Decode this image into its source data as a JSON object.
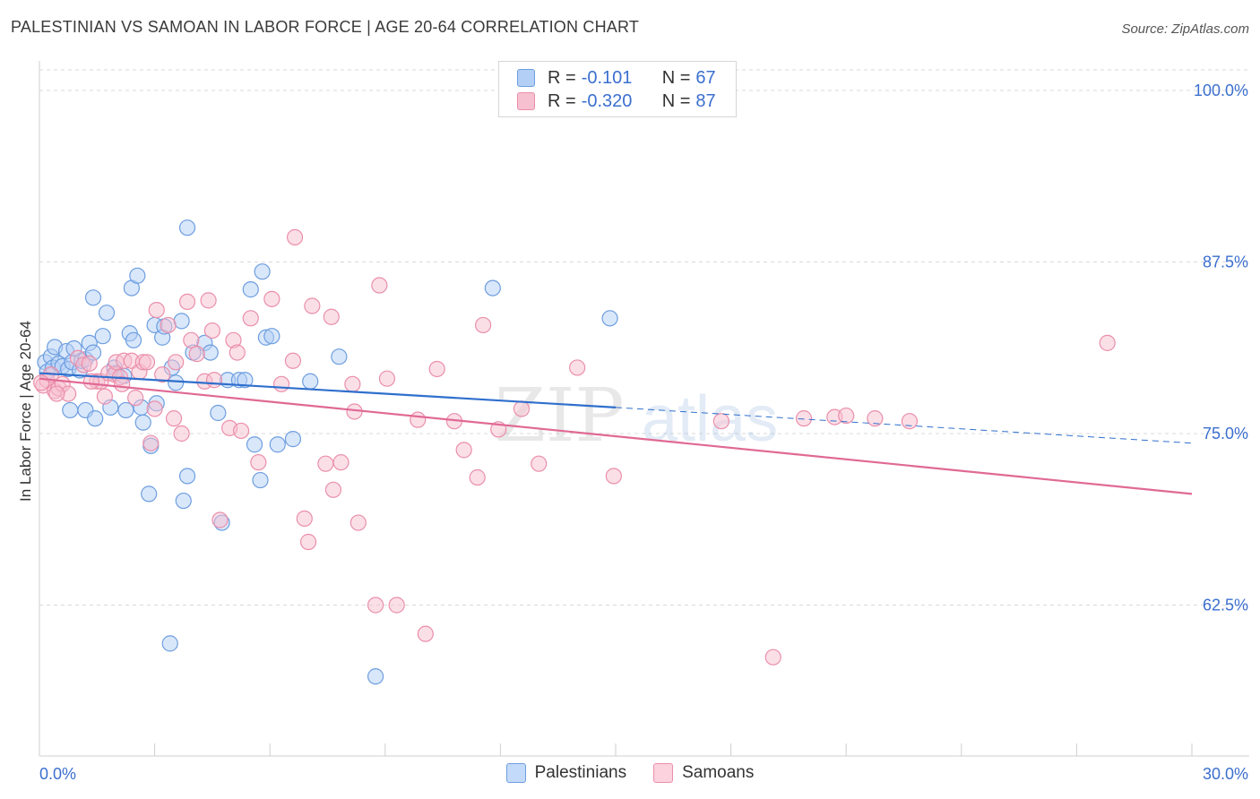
{
  "header": {
    "title": "PALESTINIAN VS SAMOAN IN LABOR FORCE | AGE 20-64 CORRELATION CHART",
    "source": "Source: ZipAtlas.com"
  },
  "watermark": {
    "zip": "ZIP",
    "atlas": "atlas"
  },
  "legend_top": {
    "rows": [
      {
        "r_label": "R =",
        "r_value": "-0.101",
        "n_label": "N =",
        "n_value": "67",
        "color": "#a9c8f2",
        "border": "#6d9ee0"
      },
      {
        "r_label": "R =",
        "r_value": "-0.320",
        "n_label": "N =",
        "n_value": "87",
        "color": "#f7c0d0",
        "border": "#ea8fab"
      }
    ]
  },
  "legend_bottom": {
    "items": [
      {
        "label": "Palestinians",
        "color": "#c4dafa",
        "border": "#6d9ee0"
      },
      {
        "label": "Samoans",
        "color": "#fbd2de",
        "border": "#ea8fab"
      }
    ]
  },
  "chart_data": {
    "type": "scatter",
    "title": "PALESTINIAN VS SAMOAN IN LABOR FORCE | AGE 20-64 CORRELATION CHART",
    "xlabel": "",
    "ylabel": "In Labor Force | Age 20-64",
    "xlim": [
      0,
      30
    ],
    "ylim": [
      51.5,
      101.5
    ],
    "x_tick_labels": [
      "0.0%",
      "30.0%"
    ],
    "y_ticks": [
      62.5,
      75.0,
      87.5,
      100.0
    ],
    "y_tick_labels": [
      "62.5%",
      "75.0%",
      "87.5%",
      "100.0%"
    ],
    "grid": true,
    "legend_placement": "top-center",
    "series": [
      {
        "name": "Palestinians",
        "color": "#6d9ee0",
        "fill": "#b3cff5",
        "trend": {
          "x": [
            0,
            15
          ],
          "y": [
            79.4,
            76.9
          ],
          "dashed_to": [
            30,
            74.3
          ]
        },
        "points": [
          [
            0.15,
            80.2
          ],
          [
            0.2,
            79.5
          ],
          [
            0.3,
            80.6
          ],
          [
            0.35,
            79.8
          ],
          [
            0.4,
            81.3
          ],
          [
            0.5,
            80.1
          ],
          [
            0.6,
            79.9
          ],
          [
            0.7,
            81.0
          ],
          [
            0.75,
            79.7
          ],
          [
            0.85,
            80.2
          ],
          [
            0.8,
            76.7
          ],
          [
            0.9,
            81.2
          ],
          [
            1.05,
            79.6
          ],
          [
            1.1,
            80.3
          ],
          [
            1.2,
            80.4
          ],
          [
            1.2,
            76.7
          ],
          [
            1.3,
            81.6
          ],
          [
            1.4,
            80.9
          ],
          [
            1.45,
            76.1
          ],
          [
            1.4,
            84.9
          ],
          [
            1.65,
            82.1
          ],
          [
            1.75,
            83.8
          ],
          [
            1.85,
            76.9
          ],
          [
            1.95,
            79.8
          ],
          [
            2.0,
            79.4
          ],
          [
            2.2,
            79.2
          ],
          [
            2.25,
            76.7
          ],
          [
            2.35,
            82.3
          ],
          [
            2.4,
            85.6
          ],
          [
            2.45,
            81.8
          ],
          [
            2.55,
            86.5
          ],
          [
            2.65,
            76.9
          ],
          [
            2.7,
            75.8
          ],
          [
            2.85,
            70.6
          ],
          [
            2.9,
            74.1
          ],
          [
            3.0,
            82.9
          ],
          [
            3.05,
            77.2
          ],
          [
            3.2,
            82.0
          ],
          [
            3.25,
            82.8
          ],
          [
            3.45,
            79.8
          ],
          [
            3.55,
            78.7
          ],
          [
            3.7,
            83.2
          ],
          [
            3.75,
            70.1
          ],
          [
            3.85,
            90.0
          ],
          [
            3.85,
            71.9
          ],
          [
            4.0,
            80.9
          ],
          [
            4.3,
            81.6
          ],
          [
            4.45,
            80.9
          ],
          [
            4.65,
            76.5
          ],
          [
            4.75,
            68.5
          ],
          [
            4.9,
            78.9
          ],
          [
            5.2,
            78.9
          ],
          [
            5.35,
            78.9
          ],
          [
            5.5,
            85.5
          ],
          [
            5.6,
            74.2
          ],
          [
            5.75,
            71.6
          ],
          [
            5.8,
            86.8
          ],
          [
            5.9,
            82.0
          ],
          [
            6.05,
            82.1
          ],
          [
            6.2,
            74.2
          ],
          [
            6.6,
            74.6
          ],
          [
            7.05,
            78.8
          ],
          [
            7.8,
            80.6
          ],
          [
            8.75,
            57.3
          ],
          [
            11.8,
            85.6
          ],
          [
            3.4,
            59.7
          ],
          [
            14.85,
            83.4
          ]
        ]
      },
      {
        "name": "Samoans",
        "color": "#ea8fab",
        "fill": "#f7c0d0",
        "trend": {
          "x": [
            0,
            30
          ],
          "y": [
            79.0,
            70.6
          ]
        },
        "points": [
          [
            0.1,
            78.5
          ],
          [
            0.2,
            78.9
          ],
          [
            0.3,
            79.3
          ],
          [
            0.4,
            78.1
          ],
          [
            0.5,
            78.3
          ],
          [
            0.6,
            78.6
          ],
          [
            0.75,
            77.9
          ],
          [
            1.0,
            80.5
          ],
          [
            1.15,
            80.0
          ],
          [
            1.3,
            80.1
          ],
          [
            1.5,
            78.8
          ],
          [
            1.6,
            78.8
          ],
          [
            1.7,
            77.7
          ],
          [
            1.8,
            79.4
          ],
          [
            1.95,
            79.3
          ],
          [
            2.0,
            80.2
          ],
          [
            2.1,
            79.1
          ],
          [
            2.2,
            80.3
          ],
          [
            2.4,
            80.3
          ],
          [
            2.5,
            77.6
          ],
          [
            2.6,
            79.5
          ],
          [
            2.7,
            80.2
          ],
          [
            2.8,
            80.2
          ],
          [
            2.9,
            74.3
          ],
          [
            3.0,
            76.8
          ],
          [
            3.05,
            84.0
          ],
          [
            3.2,
            79.3
          ],
          [
            3.35,
            82.9
          ],
          [
            3.55,
            80.2
          ],
          [
            3.7,
            75.0
          ],
          [
            3.85,
            84.6
          ],
          [
            3.95,
            81.8
          ],
          [
            4.1,
            80.8
          ],
          [
            4.3,
            78.8
          ],
          [
            4.4,
            84.7
          ],
          [
            4.5,
            82.5
          ],
          [
            4.55,
            78.9
          ],
          [
            4.7,
            68.7
          ],
          [
            4.95,
            75.4
          ],
          [
            5.05,
            81.8
          ],
          [
            5.15,
            80.9
          ],
          [
            5.25,
            75.2
          ],
          [
            5.5,
            83.4
          ],
          [
            5.7,
            72.9
          ],
          [
            6.05,
            84.8
          ],
          [
            6.3,
            78.6
          ],
          [
            6.6,
            80.3
          ],
          [
            6.65,
            89.3
          ],
          [
            6.9,
            68.8
          ],
          [
            7.0,
            67.1
          ],
          [
            7.1,
            84.3
          ],
          [
            7.45,
            72.8
          ],
          [
            7.65,
            70.9
          ],
          [
            7.6,
            83.5
          ],
          [
            7.85,
            72.9
          ],
          [
            8.15,
            78.6
          ],
          [
            8.2,
            76.6
          ],
          [
            8.3,
            68.5
          ],
          [
            8.75,
            62.5
          ],
          [
            8.85,
            85.8
          ],
          [
            9.05,
            79.0
          ],
          [
            9.3,
            62.5
          ],
          [
            9.85,
            76.0
          ],
          [
            10.05,
            60.4
          ],
          [
            10.35,
            79.7
          ],
          [
            10.8,
            75.9
          ],
          [
            11.05,
            73.8
          ],
          [
            11.4,
            71.8
          ],
          [
            11.55,
            82.9
          ],
          [
            11.95,
            75.3
          ],
          [
            12.55,
            76.8
          ],
          [
            13.0,
            72.8
          ],
          [
            14.0,
            79.8
          ],
          [
            14.95,
            71.9
          ],
          [
            17.75,
            75.9
          ],
          [
            19.1,
            58.7
          ],
          [
            19.9,
            76.1
          ],
          [
            20.7,
            76.2
          ],
          [
            21.0,
            76.3
          ],
          [
            21.75,
            76.1
          ],
          [
            22.65,
            75.9
          ],
          [
            27.8,
            81.6
          ],
          [
            0.05,
            78.7
          ],
          [
            0.45,
            77.9
          ],
          [
            1.35,
            78.8
          ],
          [
            2.15,
            78.6
          ],
          [
            3.5,
            76.1
          ]
        ]
      }
    ]
  }
}
